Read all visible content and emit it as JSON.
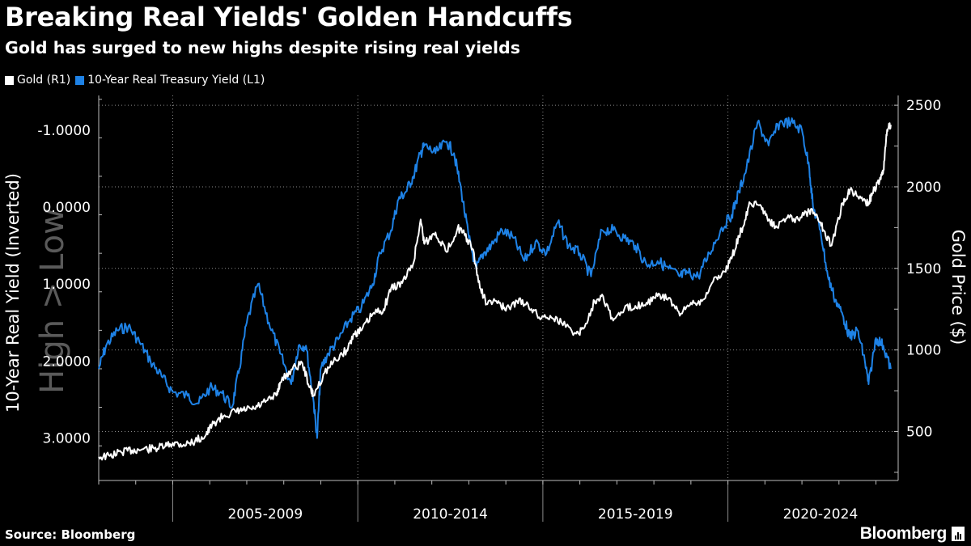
{
  "header": {
    "title": "Breaking Real Yields' Golden Handcuffs",
    "subtitle": "Gold has surged to new highs despite rising real yields"
  },
  "footer": {
    "source": "Source: Bloomberg",
    "brand": "Bloomberg"
  },
  "colors": {
    "background": "#000000",
    "gold_series": "#ffffff",
    "yield_series": "#1e82e6",
    "grid": "#8a8a8a",
    "axis_text": "#ffffff",
    "watermark": "#5a5a5a"
  },
  "chart_data": {
    "type": "line",
    "title": "Breaking Real Yields' Golden Handcuffs",
    "subtitle": "Gold has surged to new highs despite rising real yields",
    "legend": [
      "Gold (R1)",
      "10-Year Real Treasury Yield (L1)"
    ],
    "legend_position": "top-left",
    "watermark": "High > Low",
    "x_axis": {
      "range": [
        2003.0,
        2024.6
      ],
      "tick_labels": [
        "2005-2009",
        "2010-2014",
        "2015-2019",
        "2020-2024"
      ],
      "tick_label_centers": [
        2007.5,
        2012.5,
        2017.5,
        2022.5
      ],
      "dividers": [
        2005,
        2010,
        2015,
        2020
      ]
    },
    "y_left": {
      "label": "10-Year Real Yield (Inverted)",
      "inverted": true,
      "range": [
        3.55,
        -1.45
      ],
      "ticks": [
        -1.0,
        0.0,
        1.0,
        2.0,
        3.0
      ],
      "tick_labels": [
        "-1.0000",
        "0.0000",
        "1.0000",
        "2.0000",
        "3.0000"
      ]
    },
    "y_right": {
      "label": "Gold Price ($)",
      "range": [
        200,
        2560
      ],
      "ticks": [
        500,
        1000,
        1500,
        2000,
        2500
      ],
      "tick_labels": [
        "500",
        "1000",
        "1500",
        "2000",
        "2500"
      ]
    },
    "series": [
      {
        "name": "Gold (R1)",
        "axis": "right",
        "color": "#ffffff",
        "x": [
          2003.0,
          2003.3,
          2003.6,
          2003.9,
          2004.2,
          2004.5,
          2004.8,
          2005.0,
          2005.3,
          2005.6,
          2005.9,
          2006.1,
          2006.4,
          2006.7,
          2006.9,
          2007.2,
          2007.5,
          2007.8,
          2007.9,
          2008.2,
          2008.5,
          2008.7,
          2008.8,
          2009.1,
          2009.4,
          2009.7,
          2009.9,
          2010.1,
          2010.4,
          2010.7,
          2010.9,
          2011.2,
          2011.5,
          2011.7,
          2011.8,
          2012.1,
          2012.4,
          2012.7,
          2012.9,
          2013.1,
          2013.3,
          2013.5,
          2013.8,
          2014.0,
          2014.3,
          2014.6,
          2014.9,
          2015.2,
          2015.5,
          2015.9,
          2016.1,
          2016.4,
          2016.6,
          2016.9,
          2017.2,
          2017.5,
          2017.8,
          2018.1,
          2018.4,
          2018.7,
          2019.0,
          2019.3,
          2019.6,
          2019.9,
          2020.1,
          2020.3,
          2020.4,
          2020.6,
          2020.9,
          2021.1,
          2021.3,
          2021.6,
          2021.9,
          2022.2,
          2022.4,
          2022.6,
          2022.8,
          2023.1,
          2023.3,
          2023.6,
          2023.8,
          2023.9,
          2024.1,
          2024.2,
          2024.3,
          2024.4
        ],
        "values": [
          345,
          350,
          375,
          385,
          392,
          395,
          410,
          430,
          420,
          440,
          480,
          550,
          600,
          620,
          630,
          640,
          680,
          720,
          800,
          880,
          920,
          770,
          720,
          860,
          940,
          1000,
          1100,
          1120,
          1220,
          1250,
          1380,
          1410,
          1530,
          1800,
          1650,
          1720,
          1600,
          1750,
          1700,
          1620,
          1380,
          1280,
          1300,
          1240,
          1300,
          1280,
          1200,
          1210,
          1170,
          1100,
          1130,
          1300,
          1340,
          1180,
          1250,
          1270,
          1290,
          1330,
          1320,
          1210,
          1290,
          1300,
          1420,
          1480,
          1560,
          1700,
          1750,
          1900,
          1880,
          1800,
          1760,
          1810,
          1800,
          1850,
          1830,
          1730,
          1640,
          1900,
          1980,
          1930,
          1900,
          1960,
          2040,
          2100,
          2350,
          2380
        ]
      },
      {
        "name": "10-Year Real Treasury Yield (L1)",
        "axis": "left",
        "color": "#1e82e6",
        "x": [
          2003.0,
          2003.2,
          2003.5,
          2003.8,
          2004.1,
          2004.4,
          2004.7,
          2005.0,
          2005.4,
          2005.7,
          2006.0,
          2006.3,
          2006.6,
          2006.8,
          2007.0,
          2007.3,
          2007.6,
          2007.9,
          2008.2,
          2008.4,
          2008.6,
          2008.8,
          2008.9,
          2009.0,
          2009.2,
          2009.5,
          2009.8,
          2010.1,
          2010.4,
          2010.6,
          2010.9,
          2011.1,
          2011.3,
          2011.5,
          2011.7,
          2011.8,
          2012.1,
          2012.4,
          2012.6,
          2012.8,
          2013.0,
          2013.2,
          2013.4,
          2013.6,
          2013.9,
          2014.2,
          2014.5,
          2014.8,
          2015.1,
          2015.4,
          2015.7,
          2016.0,
          2016.3,
          2016.6,
          2016.9,
          2017.2,
          2017.5,
          2017.8,
          2018.1,
          2018.4,
          2018.7,
          2018.9,
          2019.2,
          2019.5,
          2019.8,
          2020.1,
          2020.3,
          2020.5,
          2020.8,
          2021.1,
          2021.4,
          2021.7,
          2022.0,
          2022.2,
          2022.3,
          2022.5,
          2022.7,
          2022.9,
          2023.1,
          2023.3,
          2023.5,
          2023.7,
          2023.8,
          2024.0,
          2024.2,
          2024.4
        ],
        "values": [
          2.1,
          1.8,
          1.6,
          1.55,
          1.75,
          2.0,
          2.2,
          2.4,
          2.45,
          2.55,
          2.35,
          2.4,
          2.6,
          2.1,
          1.5,
          1.0,
          1.5,
          1.9,
          2.3,
          1.8,
          1.8,
          2.5,
          3.0,
          2.1,
          1.9,
          1.7,
          1.45,
          1.3,
          1.0,
          0.6,
          0.3,
          -0.1,
          -0.2,
          -0.4,
          -0.7,
          -0.8,
          -0.7,
          -0.85,
          -0.7,
          -0.2,
          0.4,
          0.8,
          0.6,
          0.5,
          0.3,
          0.4,
          0.7,
          0.45,
          0.6,
          0.2,
          0.5,
          0.6,
          0.9,
          0.3,
          0.3,
          0.4,
          0.5,
          0.75,
          0.7,
          0.8,
          0.9,
          0.85,
          0.9,
          0.6,
          0.3,
          0.1,
          -0.2,
          -0.5,
          -1.1,
          -0.8,
          -1.1,
          -1.1,
          -1.0,
          -0.5,
          0.0,
          0.3,
          0.9,
          1.2,
          1.4,
          1.7,
          1.6,
          2.0,
          2.3,
          1.7,
          1.8,
          2.1
        ]
      }
    ]
  }
}
